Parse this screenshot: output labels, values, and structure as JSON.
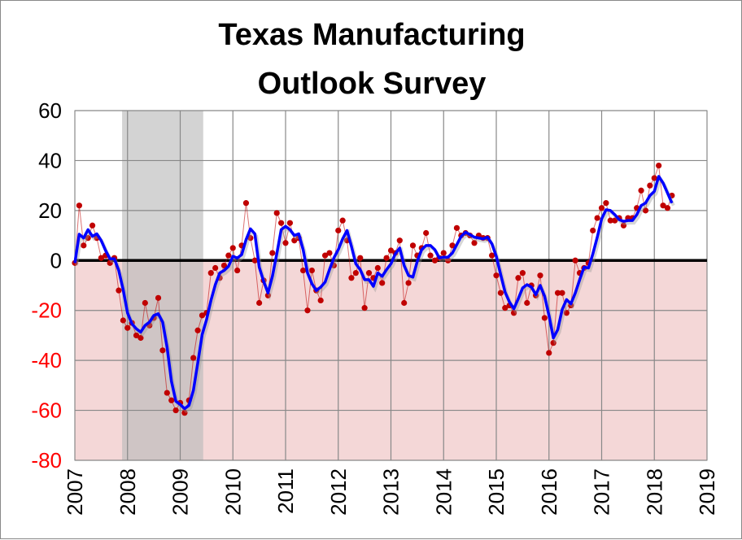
{
  "chart_data": {
    "type": "line",
    "title_lines": [
      "Texas Manufacturing",
      "Outlook Survey"
    ],
    "xlabel": "",
    "ylabel": "",
    "ylim": [
      -80,
      60
    ],
    "yticks": [
      60,
      40,
      20,
      0,
      -20,
      -40,
      -60,
      -80
    ],
    "xlim": [
      2007,
      2019
    ],
    "xticks": [
      "2007",
      "2008",
      "2009",
      "2010",
      "2011",
      "2012",
      "2013",
      "2014",
      "2015",
      "2016",
      "2017",
      "2018",
      "2019"
    ],
    "grid": true,
    "negative_tick_color": "#ff0000",
    "negative_region_color": "#f4d7d7",
    "recession_shading": {
      "start": "2007-12",
      "end": "2009-06",
      "color": "#bbbbbb"
    },
    "start_month": "2007-01",
    "series": [
      {
        "style": "monthly points",
        "color": "#c00000",
        "values": [
          -1,
          22,
          6,
          9,
          14,
          9,
          1,
          2,
          -1,
          1,
          -12,
          -24,
          -27,
          -25,
          -30,
          -31,
          -17,
          -26,
          -23,
          -15,
          -36,
          -53,
          -56,
          -60,
          -57,
          -61,
          -56,
          -39,
          -28,
          -22,
          -21,
          -5,
          -3,
          -7,
          -2,
          2,
          5,
          -4,
          6,
          23,
          9,
          0,
          -17,
          -8,
          -14,
          3,
          19,
          15,
          7,
          15,
          8,
          9,
          -4,
          -20,
          -4,
          -12,
          -16,
          2,
          3,
          -2,
          12,
          16,
          8,
          -7,
          -5,
          1,
          -19,
          -5,
          -7,
          -3,
          -9,
          1,
          4,
          3,
          8,
          -17,
          -9,
          6,
          2,
          5,
          11,
          2,
          0,
          1,
          3,
          0,
          6,
          13,
          10,
          11,
          10,
          7,
          10,
          9,
          9,
          2,
          -6,
          -13,
          -19,
          -18,
          -21,
          -7,
          -5,
          -17,
          -10,
          -14,
          -6,
          -23,
          -37,
          -33,
          -13,
          -13,
          -21,
          -18,
          0,
          -5,
          -3,
          -1,
          12,
          17,
          21,
          23,
          16,
          16,
          17,
          14,
          17,
          17,
          21,
          28,
          20,
          30,
          33,
          38,
          22,
          21,
          26
        ]
      },
      {
        "style": "3-month moving average line",
        "color": "#0000ff"
      }
    ]
  }
}
